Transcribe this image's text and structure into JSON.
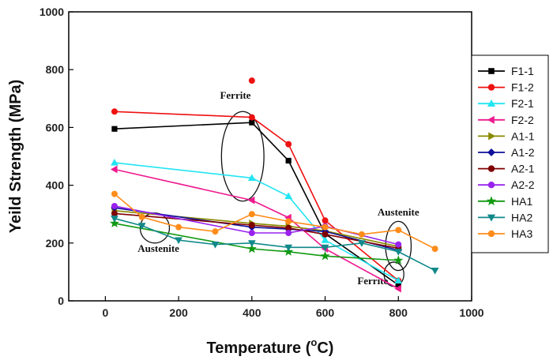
{
  "chart_data": {
    "type": "line",
    "title": "",
    "xlabel": "Temperature (°C)",
    "xlabel_main": "Temperature (",
    "xlabel_degree": "o",
    "xlabel_unit": "C)",
    "ylabel": "Yeild Strength (MPa)",
    "xlim": [
      -100,
      1000
    ],
    "ylim": [
      0,
      1000
    ],
    "xticks": [
      0,
      200,
      400,
      600,
      800,
      1000
    ],
    "yticks": [
      0,
      200,
      400,
      600,
      800,
      1000
    ],
    "grid": false,
    "legend_position": "right",
    "series": [
      {
        "name": "F1-1",
        "color": "#000000",
        "marker": "square",
        "x": [
          25,
          400,
          500,
          600,
          800
        ],
        "y": [
          595,
          617,
          485,
          232,
          55
        ]
      },
      {
        "name": "F1-2",
        "color": "#ee1111",
        "marker": "circle",
        "x": [
          25,
          400,
          500,
          600,
          800
        ],
        "y": [
          655,
          635,
          542,
          278,
          70
        ]
      },
      {
        "name": "F2-1",
        "color": "#22e5f2",
        "marker": "triangle-up",
        "x": [
          25,
          400,
          500,
          600,
          800
        ],
        "y": [
          478,
          425,
          362,
          210,
          70
        ]
      },
      {
        "name": "F2-2",
        "color": "#ee1a8f",
        "marker": "triangle-left",
        "x": [
          25,
          400,
          500,
          600,
          800
        ],
        "y": [
          455,
          348,
          288,
          180,
          42
        ]
      },
      {
        "name": "A1-1",
        "color": "#8a8a00",
        "marker": "triangle-right",
        "x": [
          25,
          400,
          500,
          600,
          800
        ],
        "y": [
          312,
          268,
          258,
          242,
          188
        ]
      },
      {
        "name": "A1-2",
        "color": "#10109a",
        "marker": "diamond",
        "x": [
          25,
          400,
          500,
          600,
          800
        ],
        "y": [
          322,
          255,
          248,
          240,
          175
        ]
      },
      {
        "name": "A2-1",
        "color": "#800000",
        "marker": "circle",
        "x": [
          25,
          400,
          500,
          600,
          800
        ],
        "y": [
          302,
          262,
          252,
          230,
          182
        ]
      },
      {
        "name": "A2-2",
        "color": "#9922ee",
        "marker": "circle",
        "x": [
          25,
          400,
          500,
          600,
          800
        ],
        "y": [
          328,
          235,
          235,
          258,
          195
        ]
      },
      {
        "name": "HA1",
        "color": "#119911",
        "marker": "star",
        "x": [
          25,
          400,
          500,
          600,
          800
        ],
        "y": [
          268,
          180,
          170,
          155,
          140
        ]
      },
      {
        "name": "HA2",
        "color": "#11898a",
        "marker": "triangle-down",
        "x": [
          25,
          100,
          200,
          300,
          400,
          500,
          600,
          700,
          800,
          900
        ],
        "y": [
          285,
          260,
          210,
          195,
          200,
          185,
          185,
          200,
          170,
          105
        ]
      },
      {
        "name": "HA3",
        "color": "#ff8c1a",
        "marker": "circle",
        "x": [
          25,
          100,
          200,
          300,
          400,
          500,
          600,
          700,
          800,
          900
        ],
        "y": [
          370,
          290,
          255,
          240,
          300,
          275,
          255,
          230,
          245,
          180
        ]
      }
    ],
    "outliers": [
      {
        "series": "F1-2",
        "x": 400,
        "y": 762
      }
    ],
    "annotations": [
      {
        "text": "Ferrite",
        "x": 355,
        "y": 700,
        "ellipse": {
          "cx": 375,
          "cy": 500,
          "rx": 58,
          "ry": 155
        }
      },
      {
        "text": "Austenite",
        "x": 145,
        "y": 170,
        "ellipse": {
          "cx": 135,
          "cy": 252,
          "rx": 40,
          "ry": 52
        }
      },
      {
        "text": "Austenite",
        "x": 800,
        "y": 295,
        "ellipse": {
          "cx": 800,
          "cy": 190,
          "rx": 35,
          "ry": 85
        }
      },
      {
        "text": "Ferrite",
        "x": 730,
        "y": 58,
        "ellipse": {
          "cx": 788,
          "cy": 92,
          "rx": 27,
          "ry": 42
        }
      }
    ]
  }
}
